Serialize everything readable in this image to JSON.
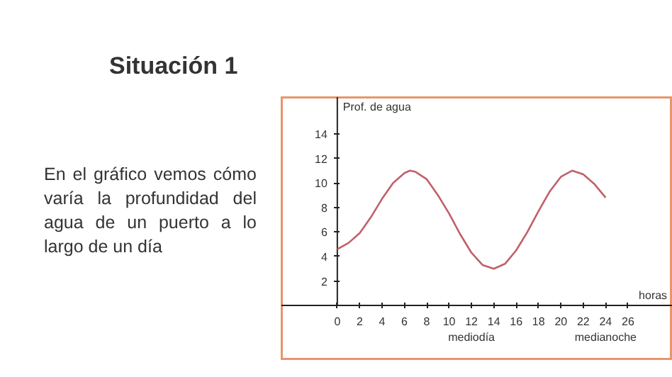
{
  "chart_data": {
    "type": "line",
    "title": "Situación 1",
    "subtitle": "En el gráfico vemos cómo varía la profundidad del agua de un puerto a lo largo de un día",
    "xlabel": "horas",
    "ylabel": "Prof. de agua",
    "x": [
      0,
      1,
      2,
      3,
      4,
      5,
      6,
      6.5,
      7,
      8,
      9,
      10,
      11,
      12,
      13,
      14,
      15,
      16,
      17,
      18,
      19,
      20,
      21,
      22,
      23,
      24
    ],
    "series": [
      {
        "color": "#c0606a",
        "values": [
          4.6,
          5.1,
          5.9,
          7.2,
          8.7,
          10.0,
          10.8,
          11.0,
          10.9,
          10.3,
          9.0,
          7.5,
          5.8,
          4.3,
          3.3,
          3.0,
          3.4,
          4.5,
          6.0,
          7.7,
          9.3,
          10.5,
          11.0,
          10.7,
          9.9,
          8.8
        ]
      }
    ],
    "xlim": [
      -5,
      30
    ],
    "ylim": [
      -4.5,
      17
    ],
    "xticks": [
      0,
      2,
      4,
      6,
      8,
      10,
      {
        "value": 12,
        "label": "12\nmediodía"
      },
      14,
      16,
      18,
      20,
      22,
      {
        "value": 24,
        "label": "24\nmedianoche"
      },
      26
    ],
    "yticks": [
      2,
      4,
      6,
      8,
      10,
      12,
      14
    ],
    "grid": false,
    "marker": "none",
    "line_style": "solid"
  }
}
